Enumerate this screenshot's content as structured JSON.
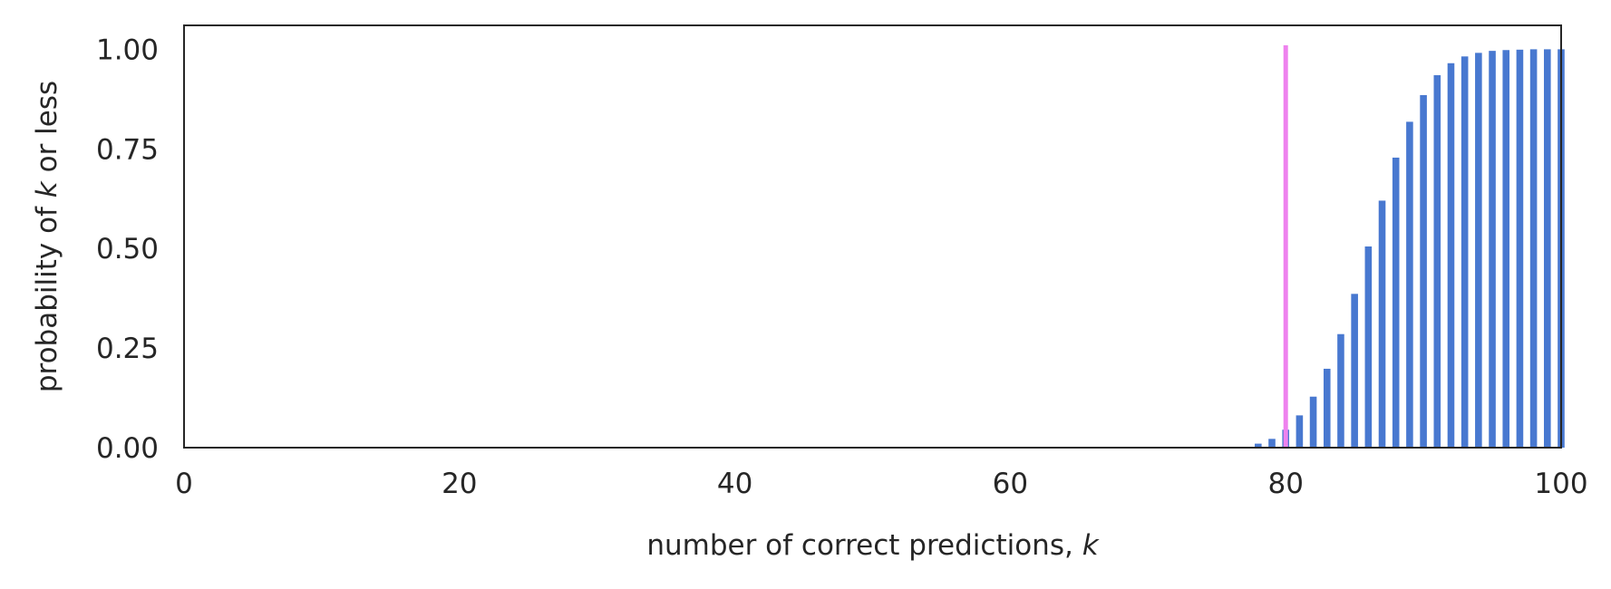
{
  "chart_data": {
    "type": "bar",
    "title": "",
    "xlabel": {
      "prefix": "number of correct predictions, ",
      "var": "k"
    },
    "ylabel": {
      "prefix": "probability of ",
      "var": "k",
      "suffix": " or less"
    },
    "xlim": [
      0,
      100
    ],
    "ylim": [
      0,
      1.06
    ],
    "xticks": [
      0,
      20,
      40,
      60,
      80,
      100
    ],
    "xtick_labels": [
      "0",
      "20",
      "40",
      "60",
      "80",
      "100"
    ],
    "yticks": [
      0,
      0.25,
      0.5,
      0.75,
      1.0
    ],
    "ytick_labels": [
      "0.00",
      "0.25",
      "0.50",
      "0.75",
      "1.00"
    ],
    "grid": false,
    "colors": {
      "bars": "#4878d0",
      "marker": "#ee82ee",
      "axes": "#262626"
    },
    "series": [
      {
        "x": [
          78,
          79,
          80,
          81,
          82,
          83,
          84,
          85,
          86,
          87,
          88,
          89,
          90,
          91,
          92,
          93,
          94,
          95,
          96,
          97,
          98,
          99,
          100
        ],
        "values": [
          0.01,
          0.022,
          0.045,
          0.081,
          0.128,
          0.198,
          0.285,
          0.386,
          0.505,
          0.62,
          0.728,
          0.818,
          0.885,
          0.935,
          0.965,
          0.982,
          0.991,
          0.996,
          0.998,
          0.999,
          1.0,
          1.0,
          1.0
        ]
      }
    ],
    "reference_line": {
      "x": 80,
      "y_from": 0,
      "y_to": 1.01
    }
  }
}
